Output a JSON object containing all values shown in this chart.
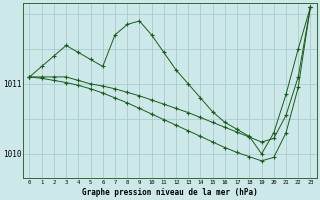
{
  "background_color": "#cce8e8",
  "grid_color": "#aacccc",
  "line_color": "#1a5c1a",
  "marker_color": "#1a5c1a",
  "xlabel": "Graphe pression niveau de la mer (hPa)",
  "xlim": [
    -0.5,
    23.5
  ],
  "ylim": [
    1009.65,
    1012.15
  ],
  "yticks": [
    1010,
    1011
  ],
  "series": [
    {
      "x": [
        0,
        1,
        2,
        3,
        4,
        5,
        6,
        7,
        8,
        9,
        10,
        11,
        12,
        13,
        14,
        15,
        16,
        17,
        18,
        19,
        20,
        21,
        22,
        23
      ],
      "y": [
        1011.1,
        1011.25,
        1011.4,
        1011.55,
        1011.45,
        1011.35,
        1011.25,
        1011.7,
        1011.85,
        1011.9,
        1011.7,
        1011.45,
        1011.2,
        1011.0,
        1010.8,
        1010.6,
        1010.45,
        1010.35,
        1010.25,
        1010.0,
        1010.3,
        1010.85,
        1011.5,
        1012.1
      ]
    },
    {
      "x": [
        0,
        1,
        2,
        3,
        4,
        5,
        6,
        7,
        8,
        9,
        10,
        11,
        12,
        13,
        14,
        15,
        16,
        17,
        18,
        19,
        20,
        21,
        22,
        23
      ],
      "y": [
        1011.1,
        1011.1,
        1011.1,
        1011.1,
        1011.05,
        1011.0,
        1010.97,
        1010.93,
        1010.88,
        1010.83,
        1010.77,
        1010.71,
        1010.65,
        1010.59,
        1010.52,
        1010.45,
        1010.38,
        1010.31,
        1010.24,
        1010.17,
        1010.22,
        1010.55,
        1011.1,
        1012.1
      ]
    },
    {
      "x": [
        0,
        1,
        2,
        3,
        4,
        5,
        6,
        7,
        8,
        9,
        10,
        11,
        12,
        13,
        14,
        15,
        16,
        17,
        18,
        19,
        20,
        21,
        22,
        23
      ],
      "y": [
        1011.1,
        1011.08,
        1011.05,
        1011.02,
        1010.98,
        1010.93,
        1010.87,
        1010.8,
        1010.73,
        1010.65,
        1010.57,
        1010.49,
        1010.41,
        1010.33,
        1010.25,
        1010.17,
        1010.09,
        1010.02,
        1009.96,
        1009.9,
        1009.95,
        1010.3,
        1010.95,
        1012.1
      ]
    }
  ],
  "marker_size": 2.5,
  "marker_style": "+"
}
